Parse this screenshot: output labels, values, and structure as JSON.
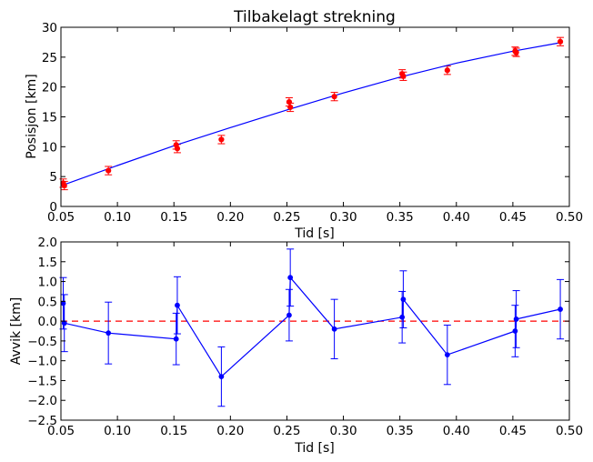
{
  "chart_data": [
    {
      "type": "scatter",
      "title": "Tilbakelagt strekning",
      "xlabel": "Tid [s]",
      "ylabel": "Posisjon [km]",
      "xlim": [
        0.05,
        0.5
      ],
      "ylim": [
        0,
        30
      ],
      "xticks": [
        "0.05",
        "0.10",
        "0.15",
        "0.20",
        "0.25",
        "0.30",
        "0.35",
        "0.40",
        "0.45",
        "0.50"
      ],
      "yticks": [
        "0",
        "5",
        "10",
        "15",
        "20",
        "25",
        "30"
      ],
      "grid": false,
      "colors": {
        "points": "#ff0000",
        "fit": "#0000ff"
      },
      "points": [
        {
          "x": 0.052,
          "y": 3.9,
          "err": 0.7
        },
        {
          "x": 0.053,
          "y": 3.5,
          "err": 0.7
        },
        {
          "x": 0.092,
          "y": 6.0,
          "err": 0.7
        },
        {
          "x": 0.152,
          "y": 10.3,
          "err": 0.7
        },
        {
          "x": 0.153,
          "y": 9.7,
          "err": 0.7
        },
        {
          "x": 0.192,
          "y": 11.2,
          "err": 0.7
        },
        {
          "x": 0.252,
          "y": 17.5,
          "err": 0.7
        },
        {
          "x": 0.253,
          "y": 16.6,
          "err": 0.7
        },
        {
          "x": 0.292,
          "y": 18.4,
          "err": 0.7
        },
        {
          "x": 0.352,
          "y": 22.2,
          "err": 0.7
        },
        {
          "x": 0.353,
          "y": 21.8,
          "err": 0.7
        },
        {
          "x": 0.392,
          "y": 22.8,
          "err": 0.7
        },
        {
          "x": 0.452,
          "y": 26.0,
          "err": 0.7
        },
        {
          "x": 0.453,
          "y": 25.8,
          "err": 0.7
        },
        {
          "x": 0.492,
          "y": 27.6,
          "err": 0.7
        }
      ],
      "fit": {
        "x": [
          0.05,
          0.1,
          0.15,
          0.2,
          0.25,
          0.3,
          0.35,
          0.4,
          0.45,
          0.49
        ],
        "y": [
          3.45,
          6.85,
          10.15,
          13.2,
          16.15,
          19.0,
          21.65,
          24.0,
          26.0,
          27.35
        ]
      }
    },
    {
      "type": "line",
      "title": "",
      "xlabel": "Tid [s]",
      "ylabel": "Avvik [km]",
      "xlim": [
        0.05,
        0.5
      ],
      "ylim": [
        -2.5,
        2.0
      ],
      "xticks": [
        "0.05",
        "0.10",
        "0.15",
        "0.20",
        "0.25",
        "0.30",
        "0.35",
        "0.40",
        "0.45",
        "0.50"
      ],
      "yticks": [
        "2.0",
        "1.5",
        "1.0",
        "0.5",
        "0.0",
        "−0.5",
        "−1.0",
        "−1.5",
        "−2.0",
        "−2.5"
      ],
      "grid": false,
      "colors": {
        "series": "#0000ff",
        "reference": "#ff0000"
      },
      "reference_y": 0.0,
      "series": [
        {
          "x": [
            0.052,
            0.053,
            0.092,
            0.152,
            0.153,
            0.192,
            0.252,
            0.253,
            0.292,
            0.352,
            0.353,
            0.392,
            0.452,
            0.453,
            0.492
          ],
          "y": [
            0.45,
            -0.05,
            -0.3,
            -0.45,
            0.4,
            -1.4,
            0.15,
            1.1,
            -0.2,
            0.1,
            0.55,
            -0.85,
            -0.25,
            0.05,
            0.3
          ],
          "err": [
            0.65,
            0.72,
            0.78,
            0.65,
            0.72,
            0.75,
            0.65,
            0.72,
            0.75,
            0.65,
            0.72,
            0.75,
            0.65,
            0.72,
            0.75
          ]
        }
      ]
    }
  ]
}
